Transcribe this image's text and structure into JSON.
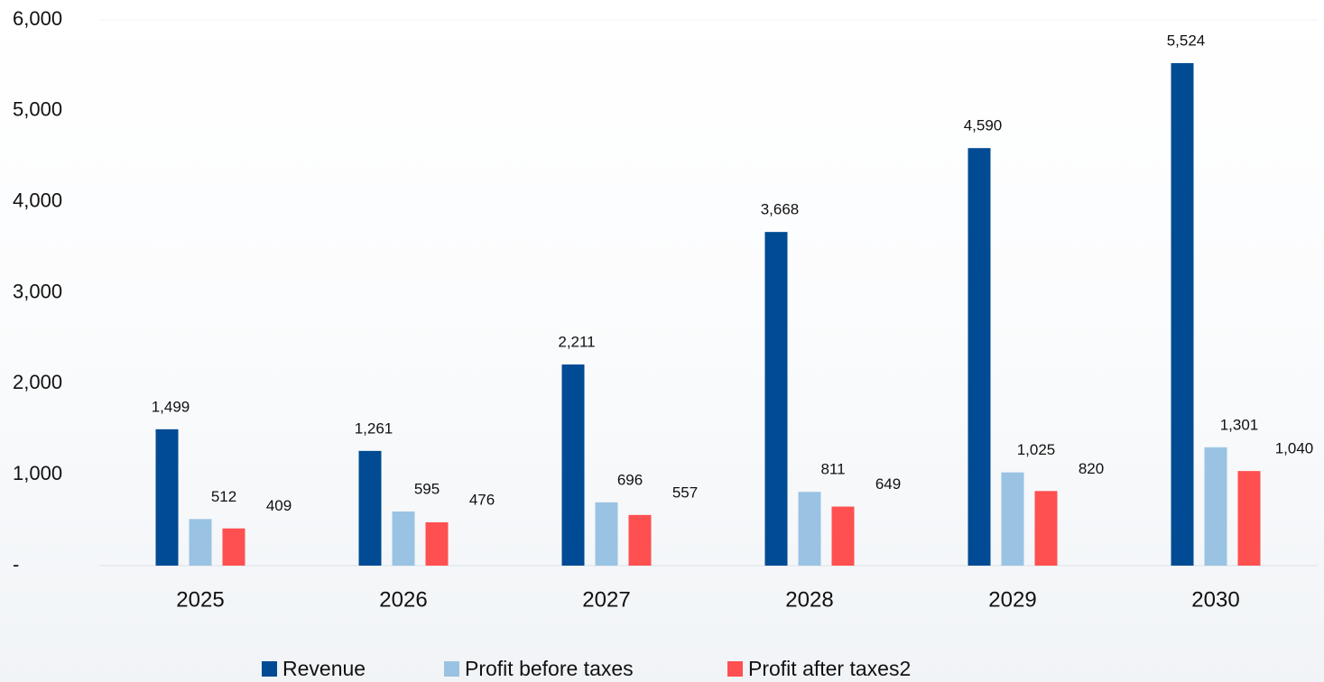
{
  "chart_data": {
    "type": "bar",
    "categories": [
      "2025",
      "2026",
      "2027",
      "2028",
      "2029",
      "2030"
    ],
    "series": [
      {
        "name": "Revenue",
        "color": "#004b93",
        "values": [
          1499,
          1261,
          2211,
          3668,
          4590,
          5524
        ],
        "value_labels": [
          "1,499",
          "1,261",
          "2,211",
          "3,668",
          "4,590",
          "5,524"
        ]
      },
      {
        "name": "Profit before taxes",
        "color": "#9ac3e3",
        "values": [
          512,
          595,
          696,
          811,
          1025,
          1301
        ],
        "value_labels": [
          "512",
          "595",
          "696",
          "811",
          "1,025",
          "1,301"
        ]
      },
      {
        "name": "Profit after taxes2",
        "color": "#fe5050",
        "values": [
          409,
          476,
          557,
          649,
          820,
          1040
        ],
        "value_labels": [
          "409",
          "476",
          "557",
          "649",
          "820",
          "1,040"
        ]
      }
    ],
    "ylim": [
      0,
      6000
    ],
    "yticks": [
      {
        "value": 0,
        "label": "-"
      },
      {
        "value": 1000,
        "label": "1,000"
      },
      {
        "value": 2000,
        "label": "2,000"
      },
      {
        "value": 3000,
        "label": "3,000"
      },
      {
        "value": 4000,
        "label": "4,000"
      },
      {
        "value": 5000,
        "label": "5,000"
      },
      {
        "value": 6000,
        "label": "6,000"
      }
    ],
    "grid": false,
    "legend": "bottom"
  }
}
